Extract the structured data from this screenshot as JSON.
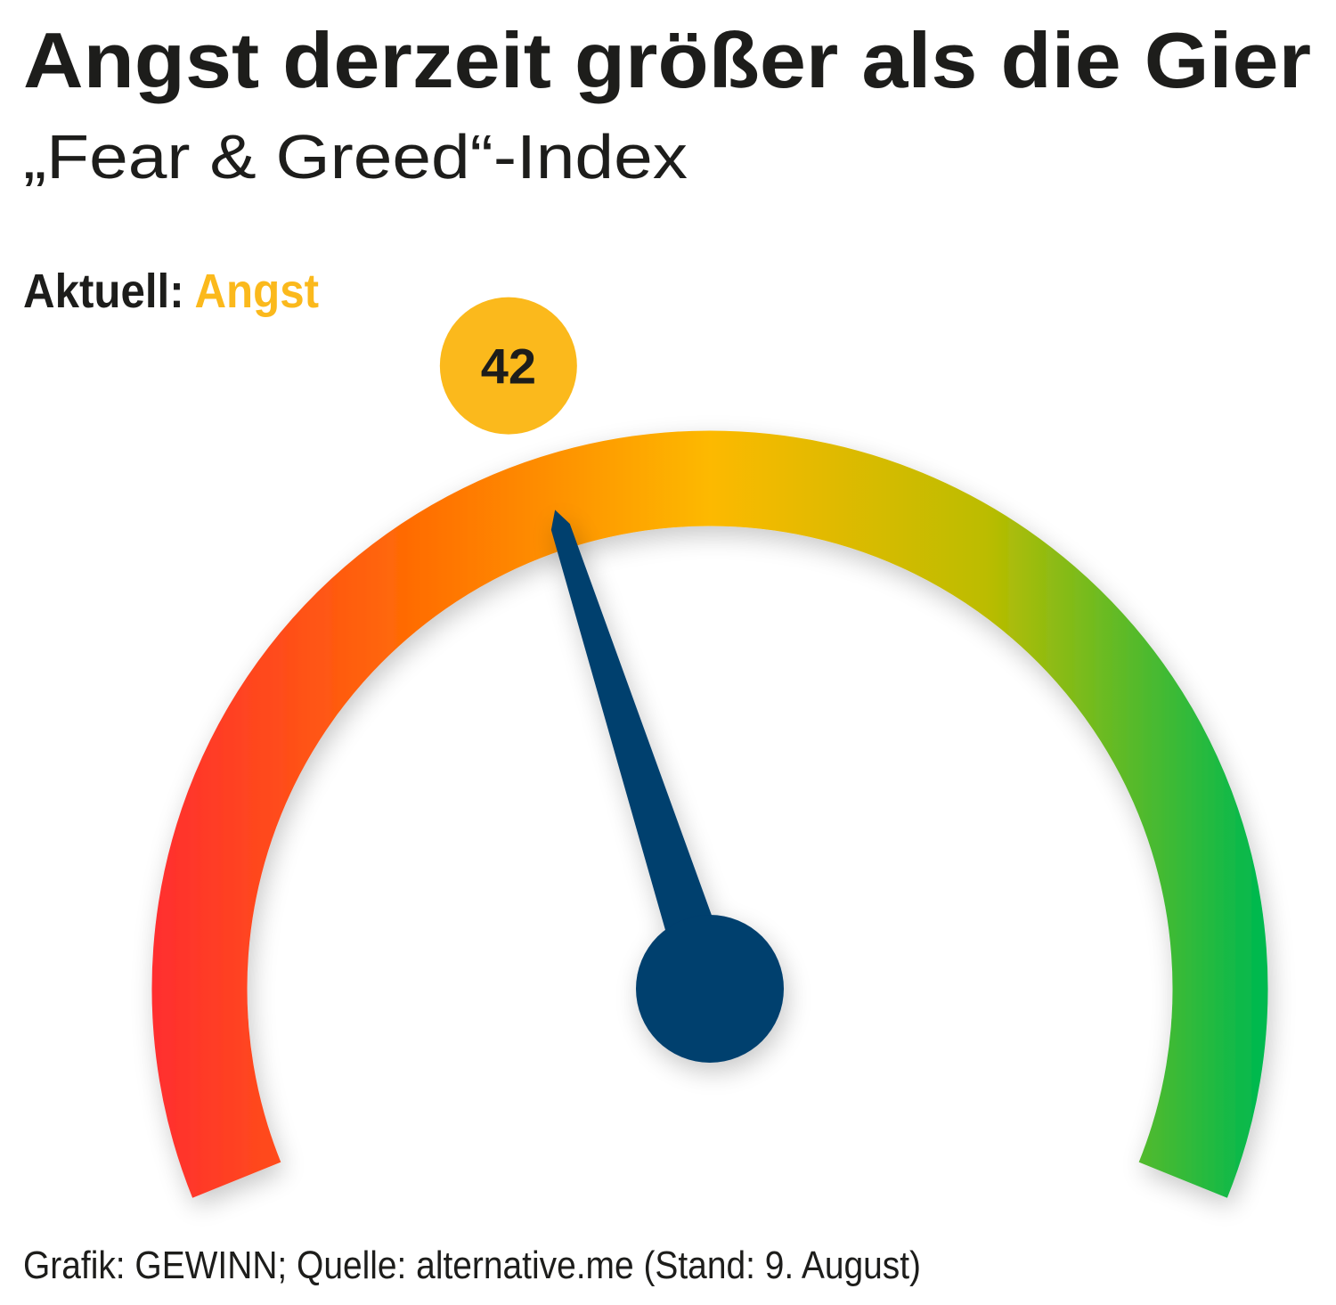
{
  "chart_data": {
    "type": "gauge",
    "title": "Angst derzeit größer als die Gier",
    "subtitle": "„Fear & Greed“-Index",
    "current_label": "Aktuell:",
    "status": "Angst",
    "status_color": "#fbb91c",
    "value": 42,
    "ylim": [
      0,
      100
    ],
    "color": "#023f6e",
    "gradient": [
      "#ff2f2f",
      "#ff7200",
      "#fdb900",
      "#bcbc00",
      "#00b94f"
    ],
    "source": "Grafik: GEWINN; Quelle: alternative.me (Stand: 9. August)"
  }
}
